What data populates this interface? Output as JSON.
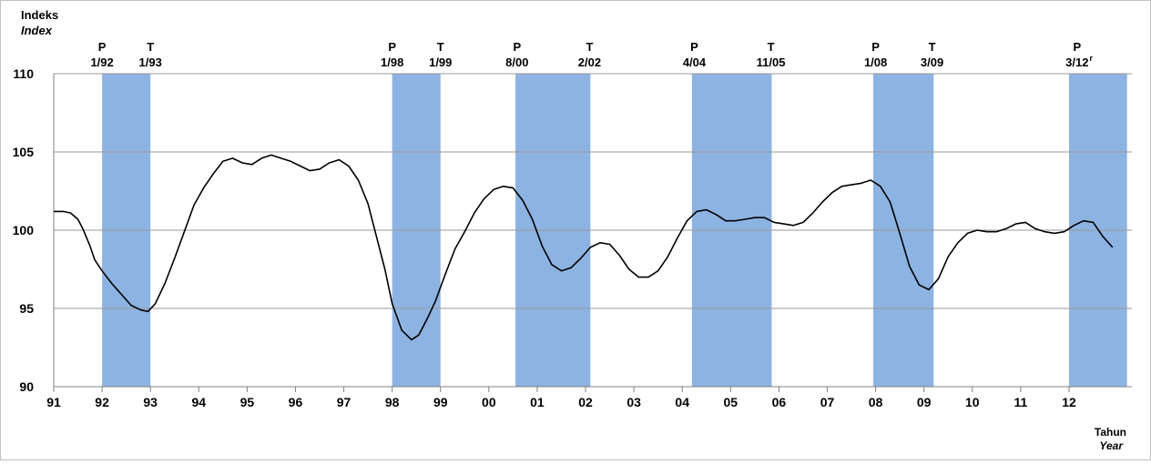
{
  "chart_data": {
    "type": "line",
    "ylabel": "Indeks",
    "ylabel_en": "Index",
    "xlabel": "Tahun",
    "xlabel_en": "Year",
    "ylim": [
      90,
      110
    ],
    "yticks": [
      "90",
      "95",
      "100",
      "105",
      "110"
    ],
    "xlim": [
      1991,
      2013.3
    ],
    "xtick_labels": [
      "91",
      "92",
      "93",
      "94",
      "95",
      "96",
      "97",
      "98",
      "99",
      "00",
      "01",
      "02",
      "03",
      "04",
      "05",
      "06",
      "07",
      "08",
      "09",
      "10",
      "11",
      "12"
    ],
    "grid": "horizontal",
    "line_color": "#000000",
    "band_color": "#8db3e2",
    "turning_points": [
      {
        "type": "P",
        "date": "1/92"
      },
      {
        "type": "T",
        "date": "1/93"
      },
      {
        "type": "P",
        "date": "1/98"
      },
      {
        "type": "T",
        "date": "1/99"
      },
      {
        "type": "P",
        "date": "8/00"
      },
      {
        "type": "T",
        "date": "2/02"
      },
      {
        "type": "P",
        "date": "4/04"
      },
      {
        "type": "T",
        "date": "11/05"
      },
      {
        "type": "P",
        "date": "1/08"
      },
      {
        "type": "T",
        "date": "3/09"
      },
      {
        "type": "P",
        "date": "3/12",
        "superscript": "r"
      }
    ],
    "contraction_bands": [
      {
        "from": 1992.0,
        "to": 1993.0
      },
      {
        "from": 1998.0,
        "to": 1999.0
      },
      {
        "from": 2000.55,
        "to": 2002.1
      },
      {
        "from": 2004.2,
        "to": 2005.85
      },
      {
        "from": 2007.95,
        "to": 2009.2
      },
      {
        "from": 2012.0,
        "to": 2013.2
      }
    ],
    "series": [
      {
        "x": [
          1991.0,
          1991.2,
          1991.35,
          1991.5,
          1991.6,
          1991.75,
          1991.85,
          1992.0,
          1992.2,
          1992.4,
          1992.6,
          1992.8,
          1992.95,
          1993.1,
          1993.3,
          1993.5,
          1993.7,
          1993.9,
          1994.1,
          1994.3,
          1994.5,
          1994.7,
          1994.9,
          1995.1,
          1995.3,
          1995.5,
          1995.7,
          1995.9,
          1996.1,
          1996.3,
          1996.5,
          1996.7,
          1996.9,
          1997.1,
          1997.3,
          1997.5,
          1997.7,
          1997.85,
          1998.0,
          1998.2,
          1998.4,
          1998.55,
          1998.75,
          1998.9,
          1999.1,
          1999.3,
          1999.5,
          1999.7,
          1999.9,
          2000.1,
          2000.3,
          2000.5,
          2000.7,
          2000.9,
          2001.1,
          2001.3,
          2001.5,
          2001.7,
          2001.9,
          2002.1,
          2002.3,
          2002.5,
          2002.7,
          2002.9,
          2003.1,
          2003.3,
          2003.5,
          2003.7,
          2003.9,
          2004.1,
          2004.3,
          2004.5,
          2004.7,
          2004.9,
          2005.1,
          2005.3,
          2005.5,
          2005.7,
          2005.9,
          2006.1,
          2006.3,
          2006.5,
          2006.7,
          2006.9,
          2007.1,
          2007.3,
          2007.5,
          2007.7,
          2007.9,
          2008.1,
          2008.3,
          2008.5,
          2008.7,
          2008.9,
          2009.1,
          2009.3,
          2009.5,
          2009.7,
          2009.9,
          2010.1,
          2010.3,
          2010.5,
          2010.7,
          2010.9,
          2011.1,
          2011.3,
          2011.5,
          2011.7,
          2011.9,
          2012.1,
          2012.3,
          2012.5,
          2012.7,
          2012.9
        ],
        "y": [
          101.2,
          101.2,
          101.1,
          100.7,
          100.1,
          99.0,
          98.1,
          97.4,
          96.6,
          95.9,
          95.2,
          94.9,
          94.8,
          95.3,
          96.6,
          98.2,
          99.9,
          101.6,
          102.7,
          103.6,
          104.4,
          104.6,
          104.3,
          104.2,
          104.6,
          104.8,
          104.6,
          104.4,
          104.1,
          103.8,
          103.9,
          104.3,
          104.5,
          104.1,
          103.2,
          101.7,
          99.3,
          97.5,
          95.3,
          93.6,
          93.0,
          93.3,
          94.5,
          95.5,
          97.2,
          98.8,
          99.9,
          101.1,
          102.0,
          102.6,
          102.8,
          102.7,
          101.9,
          100.7,
          99.0,
          97.8,
          97.4,
          97.6,
          98.2,
          98.9,
          99.2,
          99.1,
          98.4,
          97.5,
          97.0,
          97.0,
          97.4,
          98.3,
          99.5,
          100.6,
          101.2,
          101.3,
          101.0,
          100.6,
          100.6,
          100.7,
          100.8,
          100.8,
          100.5,
          100.4,
          100.3,
          100.5,
          101.1,
          101.8,
          102.4,
          102.8,
          102.9,
          103.0,
          103.2,
          102.8,
          101.8,
          99.8,
          97.7,
          96.5,
          96.2,
          96.9,
          98.3,
          99.2,
          99.8,
          100.0,
          99.9,
          99.9,
          100.1,
          100.4,
          100.5,
          100.1,
          99.9,
          99.8,
          99.9,
          100.3,
          100.6,
          100.5,
          99.6,
          98.9
        ]
      }
    ]
  }
}
